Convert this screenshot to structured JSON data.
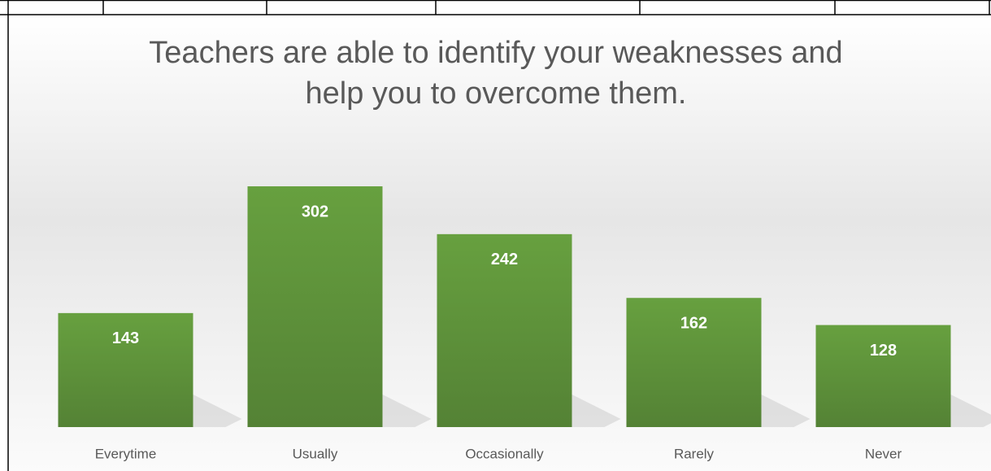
{
  "chart_data": {
    "type": "bar",
    "title": "Teachers are able to identify your weaknesses and help you to overcome them.",
    "categories": [
      "Everytime",
      "Usually",
      "Occasionally",
      "Rarely",
      "Never"
    ],
    "values": [
      143,
      302,
      242,
      162,
      128
    ],
    "color": "#5e9438"
  }
}
